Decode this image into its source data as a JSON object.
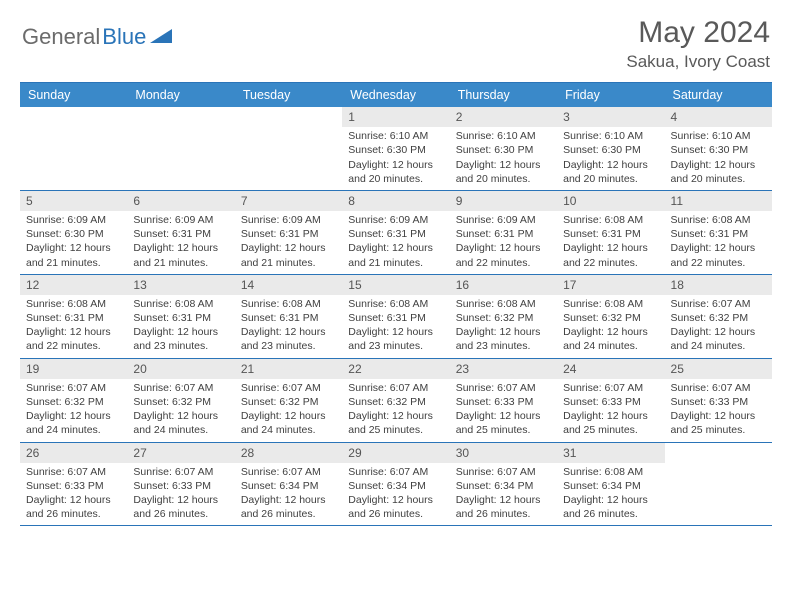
{
  "logo": {
    "text1": "General",
    "text2": "Blue"
  },
  "title": "May 2024",
  "location": "Sakua, Ivory Coast",
  "colors": {
    "header_bg": "#3a89c9",
    "header_text": "#ffffff",
    "rule": "#2a74b8",
    "daynum_bg": "#eaeaea",
    "body_text": "#3a3a3a",
    "logo_gray": "#6b6b6b",
    "logo_blue": "#2a74b8"
  },
  "dow": [
    "Sunday",
    "Monday",
    "Tuesday",
    "Wednesday",
    "Thursday",
    "Friday",
    "Saturday"
  ],
  "weeks": [
    [
      {
        "n": "",
        "sr": "",
        "ss": "",
        "dl": ""
      },
      {
        "n": "",
        "sr": "",
        "ss": "",
        "dl": ""
      },
      {
        "n": "",
        "sr": "",
        "ss": "",
        "dl": ""
      },
      {
        "n": "1",
        "sr": "Sunrise: 6:10 AM",
        "ss": "Sunset: 6:30 PM",
        "dl": "Daylight: 12 hours and 20 minutes."
      },
      {
        "n": "2",
        "sr": "Sunrise: 6:10 AM",
        "ss": "Sunset: 6:30 PM",
        "dl": "Daylight: 12 hours and 20 minutes."
      },
      {
        "n": "3",
        "sr": "Sunrise: 6:10 AM",
        "ss": "Sunset: 6:30 PM",
        "dl": "Daylight: 12 hours and 20 minutes."
      },
      {
        "n": "4",
        "sr": "Sunrise: 6:10 AM",
        "ss": "Sunset: 6:30 PM",
        "dl": "Daylight: 12 hours and 20 minutes."
      }
    ],
    [
      {
        "n": "5",
        "sr": "Sunrise: 6:09 AM",
        "ss": "Sunset: 6:30 PM",
        "dl": "Daylight: 12 hours and 21 minutes."
      },
      {
        "n": "6",
        "sr": "Sunrise: 6:09 AM",
        "ss": "Sunset: 6:31 PM",
        "dl": "Daylight: 12 hours and 21 minutes."
      },
      {
        "n": "7",
        "sr": "Sunrise: 6:09 AM",
        "ss": "Sunset: 6:31 PM",
        "dl": "Daylight: 12 hours and 21 minutes."
      },
      {
        "n": "8",
        "sr": "Sunrise: 6:09 AM",
        "ss": "Sunset: 6:31 PM",
        "dl": "Daylight: 12 hours and 21 minutes."
      },
      {
        "n": "9",
        "sr": "Sunrise: 6:09 AM",
        "ss": "Sunset: 6:31 PM",
        "dl": "Daylight: 12 hours and 22 minutes."
      },
      {
        "n": "10",
        "sr": "Sunrise: 6:08 AM",
        "ss": "Sunset: 6:31 PM",
        "dl": "Daylight: 12 hours and 22 minutes."
      },
      {
        "n": "11",
        "sr": "Sunrise: 6:08 AM",
        "ss": "Sunset: 6:31 PM",
        "dl": "Daylight: 12 hours and 22 minutes."
      }
    ],
    [
      {
        "n": "12",
        "sr": "Sunrise: 6:08 AM",
        "ss": "Sunset: 6:31 PM",
        "dl": "Daylight: 12 hours and 22 minutes."
      },
      {
        "n": "13",
        "sr": "Sunrise: 6:08 AM",
        "ss": "Sunset: 6:31 PM",
        "dl": "Daylight: 12 hours and 23 minutes."
      },
      {
        "n": "14",
        "sr": "Sunrise: 6:08 AM",
        "ss": "Sunset: 6:31 PM",
        "dl": "Daylight: 12 hours and 23 minutes."
      },
      {
        "n": "15",
        "sr": "Sunrise: 6:08 AM",
        "ss": "Sunset: 6:31 PM",
        "dl": "Daylight: 12 hours and 23 minutes."
      },
      {
        "n": "16",
        "sr": "Sunrise: 6:08 AM",
        "ss": "Sunset: 6:32 PM",
        "dl": "Daylight: 12 hours and 23 minutes."
      },
      {
        "n": "17",
        "sr": "Sunrise: 6:08 AM",
        "ss": "Sunset: 6:32 PM",
        "dl": "Daylight: 12 hours and 24 minutes."
      },
      {
        "n": "18",
        "sr": "Sunrise: 6:07 AM",
        "ss": "Sunset: 6:32 PM",
        "dl": "Daylight: 12 hours and 24 minutes."
      }
    ],
    [
      {
        "n": "19",
        "sr": "Sunrise: 6:07 AM",
        "ss": "Sunset: 6:32 PM",
        "dl": "Daylight: 12 hours and 24 minutes."
      },
      {
        "n": "20",
        "sr": "Sunrise: 6:07 AM",
        "ss": "Sunset: 6:32 PM",
        "dl": "Daylight: 12 hours and 24 minutes."
      },
      {
        "n": "21",
        "sr": "Sunrise: 6:07 AM",
        "ss": "Sunset: 6:32 PM",
        "dl": "Daylight: 12 hours and 24 minutes."
      },
      {
        "n": "22",
        "sr": "Sunrise: 6:07 AM",
        "ss": "Sunset: 6:32 PM",
        "dl": "Daylight: 12 hours and 25 minutes."
      },
      {
        "n": "23",
        "sr": "Sunrise: 6:07 AM",
        "ss": "Sunset: 6:33 PM",
        "dl": "Daylight: 12 hours and 25 minutes."
      },
      {
        "n": "24",
        "sr": "Sunrise: 6:07 AM",
        "ss": "Sunset: 6:33 PM",
        "dl": "Daylight: 12 hours and 25 minutes."
      },
      {
        "n": "25",
        "sr": "Sunrise: 6:07 AM",
        "ss": "Sunset: 6:33 PM",
        "dl": "Daylight: 12 hours and 25 minutes."
      }
    ],
    [
      {
        "n": "26",
        "sr": "Sunrise: 6:07 AM",
        "ss": "Sunset: 6:33 PM",
        "dl": "Daylight: 12 hours and 26 minutes."
      },
      {
        "n": "27",
        "sr": "Sunrise: 6:07 AM",
        "ss": "Sunset: 6:33 PM",
        "dl": "Daylight: 12 hours and 26 minutes."
      },
      {
        "n": "28",
        "sr": "Sunrise: 6:07 AM",
        "ss": "Sunset: 6:34 PM",
        "dl": "Daylight: 12 hours and 26 minutes."
      },
      {
        "n": "29",
        "sr": "Sunrise: 6:07 AM",
        "ss": "Sunset: 6:34 PM",
        "dl": "Daylight: 12 hours and 26 minutes."
      },
      {
        "n": "30",
        "sr": "Sunrise: 6:07 AM",
        "ss": "Sunset: 6:34 PM",
        "dl": "Daylight: 12 hours and 26 minutes."
      },
      {
        "n": "31",
        "sr": "Sunrise: 6:08 AM",
        "ss": "Sunset: 6:34 PM",
        "dl": "Daylight: 12 hours and 26 minutes."
      },
      {
        "n": "",
        "sr": "",
        "ss": "",
        "dl": ""
      }
    ]
  ]
}
